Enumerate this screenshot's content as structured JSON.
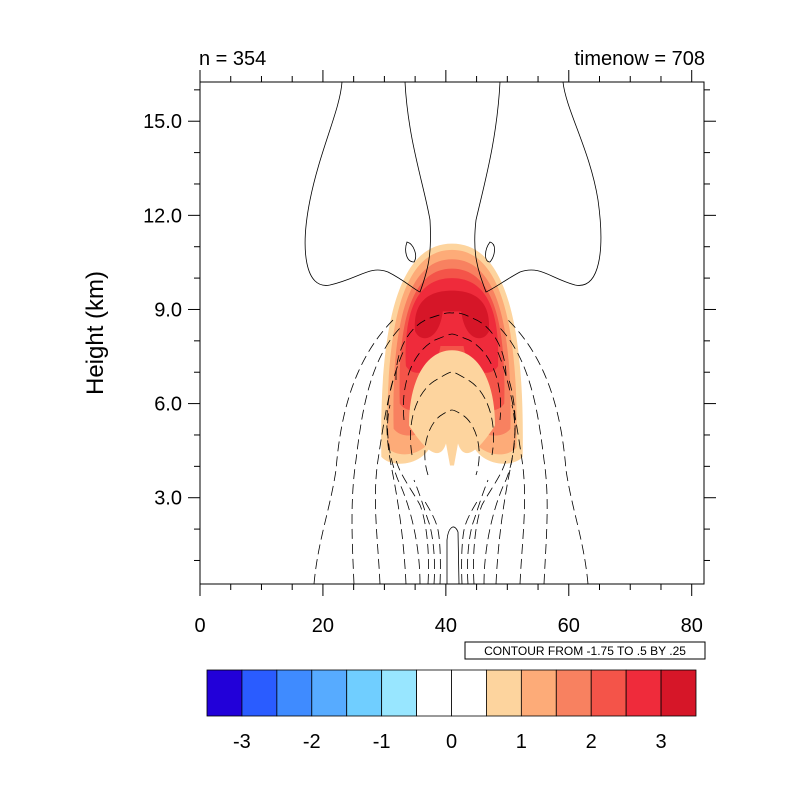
{
  "header": {
    "left_label": "n = 354",
    "right_label": "timenow = 708"
  },
  "contour_info": "CONTOUR FROM -1.75 TO .5 BY .25",
  "chart_data": {
    "type": "heatmap",
    "title": "",
    "xlabel": "",
    "ylabel": "Height (km)",
    "xlim": [
      0,
      82
    ],
    "ylim": [
      0.25,
      16.25
    ],
    "x_ticks": [
      0,
      20,
      40,
      60,
      80
    ],
    "x_tick_labels": [
      "0",
      "20",
      "40",
      "60",
      "80"
    ],
    "y_ticks": [
      3,
      6,
      9,
      12,
      15
    ],
    "y_tick_labels": [
      "3.0",
      "6.0",
      "9.0",
      "12.0",
      "15.0"
    ],
    "grid": false,
    "filled_field": {
      "center_x": 41,
      "shell_levels": [
        {
          "level": 0.5,
          "outer_x_halfwidth": 11.5,
          "top_y": 11.1,
          "bottom_y": 4.3
        },
        {
          "level": 1.0,
          "outer_x_halfwidth": 10.5,
          "top_y": 10.9,
          "bottom_y": 4.6
        },
        {
          "level": 1.5,
          "outer_x_halfwidth": 9.5,
          "top_y": 10.6,
          "bottom_y": 5.2
        },
        {
          "level": 2.0,
          "outer_x_halfwidth": 8.5,
          "top_y": 10.3,
          "bottom_y": 6.0
        },
        {
          "level": 2.5,
          "outer_x_halfwidth": 7.5,
          "top_y": 10.0,
          "bottom_y": 7.2
        },
        {
          "level": 3.0,
          "outer_x_halfwidth": 6.0,
          "top_y": 9.6,
          "bottom_y": 8.3
        }
      ],
      "inner_light_core": {
        "level": 0.5,
        "halfwidth": 7.0,
        "top_y": 7.7,
        "bottom_y": 5.3
      }
    },
    "colorbar": {
      "colors": [
        "#2200d9",
        "#2a5cff",
        "#3f8bff",
        "#57abff",
        "#70ceff",
        "#98e6ff",
        "#ffffff",
        "#ffffff",
        "#fdd49e",
        "#fdab78",
        "#f88160",
        "#f45449",
        "#ef2b3b",
        "#d61628"
      ],
      "tick_labels": [
        "-3",
        "-2",
        "-1",
        "0",
        "1",
        "2",
        "3"
      ],
      "tick_values": [
        -3,
        -2,
        -1,
        0,
        1,
        2,
        3
      ],
      "range": [
        -3.5,
        3.5
      ]
    }
  }
}
